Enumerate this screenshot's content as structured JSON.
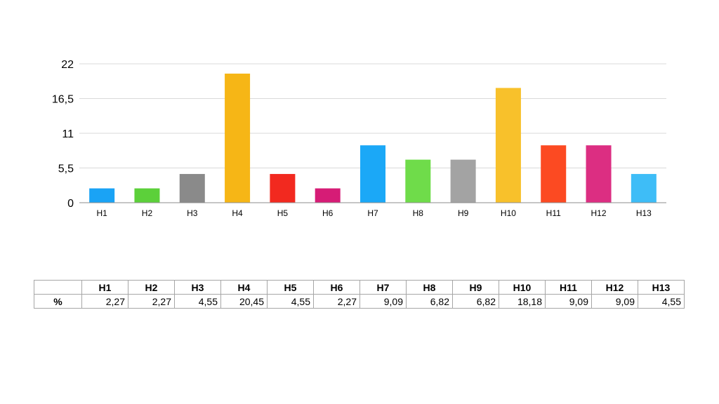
{
  "chart_data": {
    "type": "bar",
    "categories": [
      "H1",
      "H2",
      "H3",
      "H4",
      "H5",
      "H6",
      "H7",
      "H8",
      "H9",
      "H10",
      "H11",
      "H12",
      "H13"
    ],
    "values": [
      2.27,
      2.27,
      4.55,
      20.45,
      4.55,
      2.27,
      9.09,
      6.82,
      6.82,
      18.18,
      9.09,
      9.09,
      4.55
    ],
    "colors": [
      "#1aa3f5",
      "#5cd03a",
      "#8a8a8a",
      "#f6b616",
      "#f2291f",
      "#d61c76",
      "#1ba8f7",
      "#6fdc4a",
      "#a3a3a3",
      "#f8c12b",
      "#fc4a22",
      "#dc2e82",
      "#3ebdf7"
    ],
    "yticks": [
      {
        "value": 0,
        "label": "0"
      },
      {
        "value": 5.5,
        "label": "5,5"
      },
      {
        "value": 11,
        "label": "11"
      },
      {
        "value": 16.5,
        "label": "16,5"
      },
      {
        "value": 22,
        "label": "22"
      }
    ],
    "ylim": [
      0,
      22
    ],
    "grid": true,
    "title": "",
    "xlabel": "",
    "ylabel": ""
  },
  "table": {
    "row_label": "%",
    "values": [
      "2,27",
      "2,27",
      "4,55",
      "20,45",
      "4,55",
      "2,27",
      "9,09",
      "6,82",
      "6,82",
      "18,18",
      "9,09",
      "9,09",
      "4,55"
    ]
  }
}
